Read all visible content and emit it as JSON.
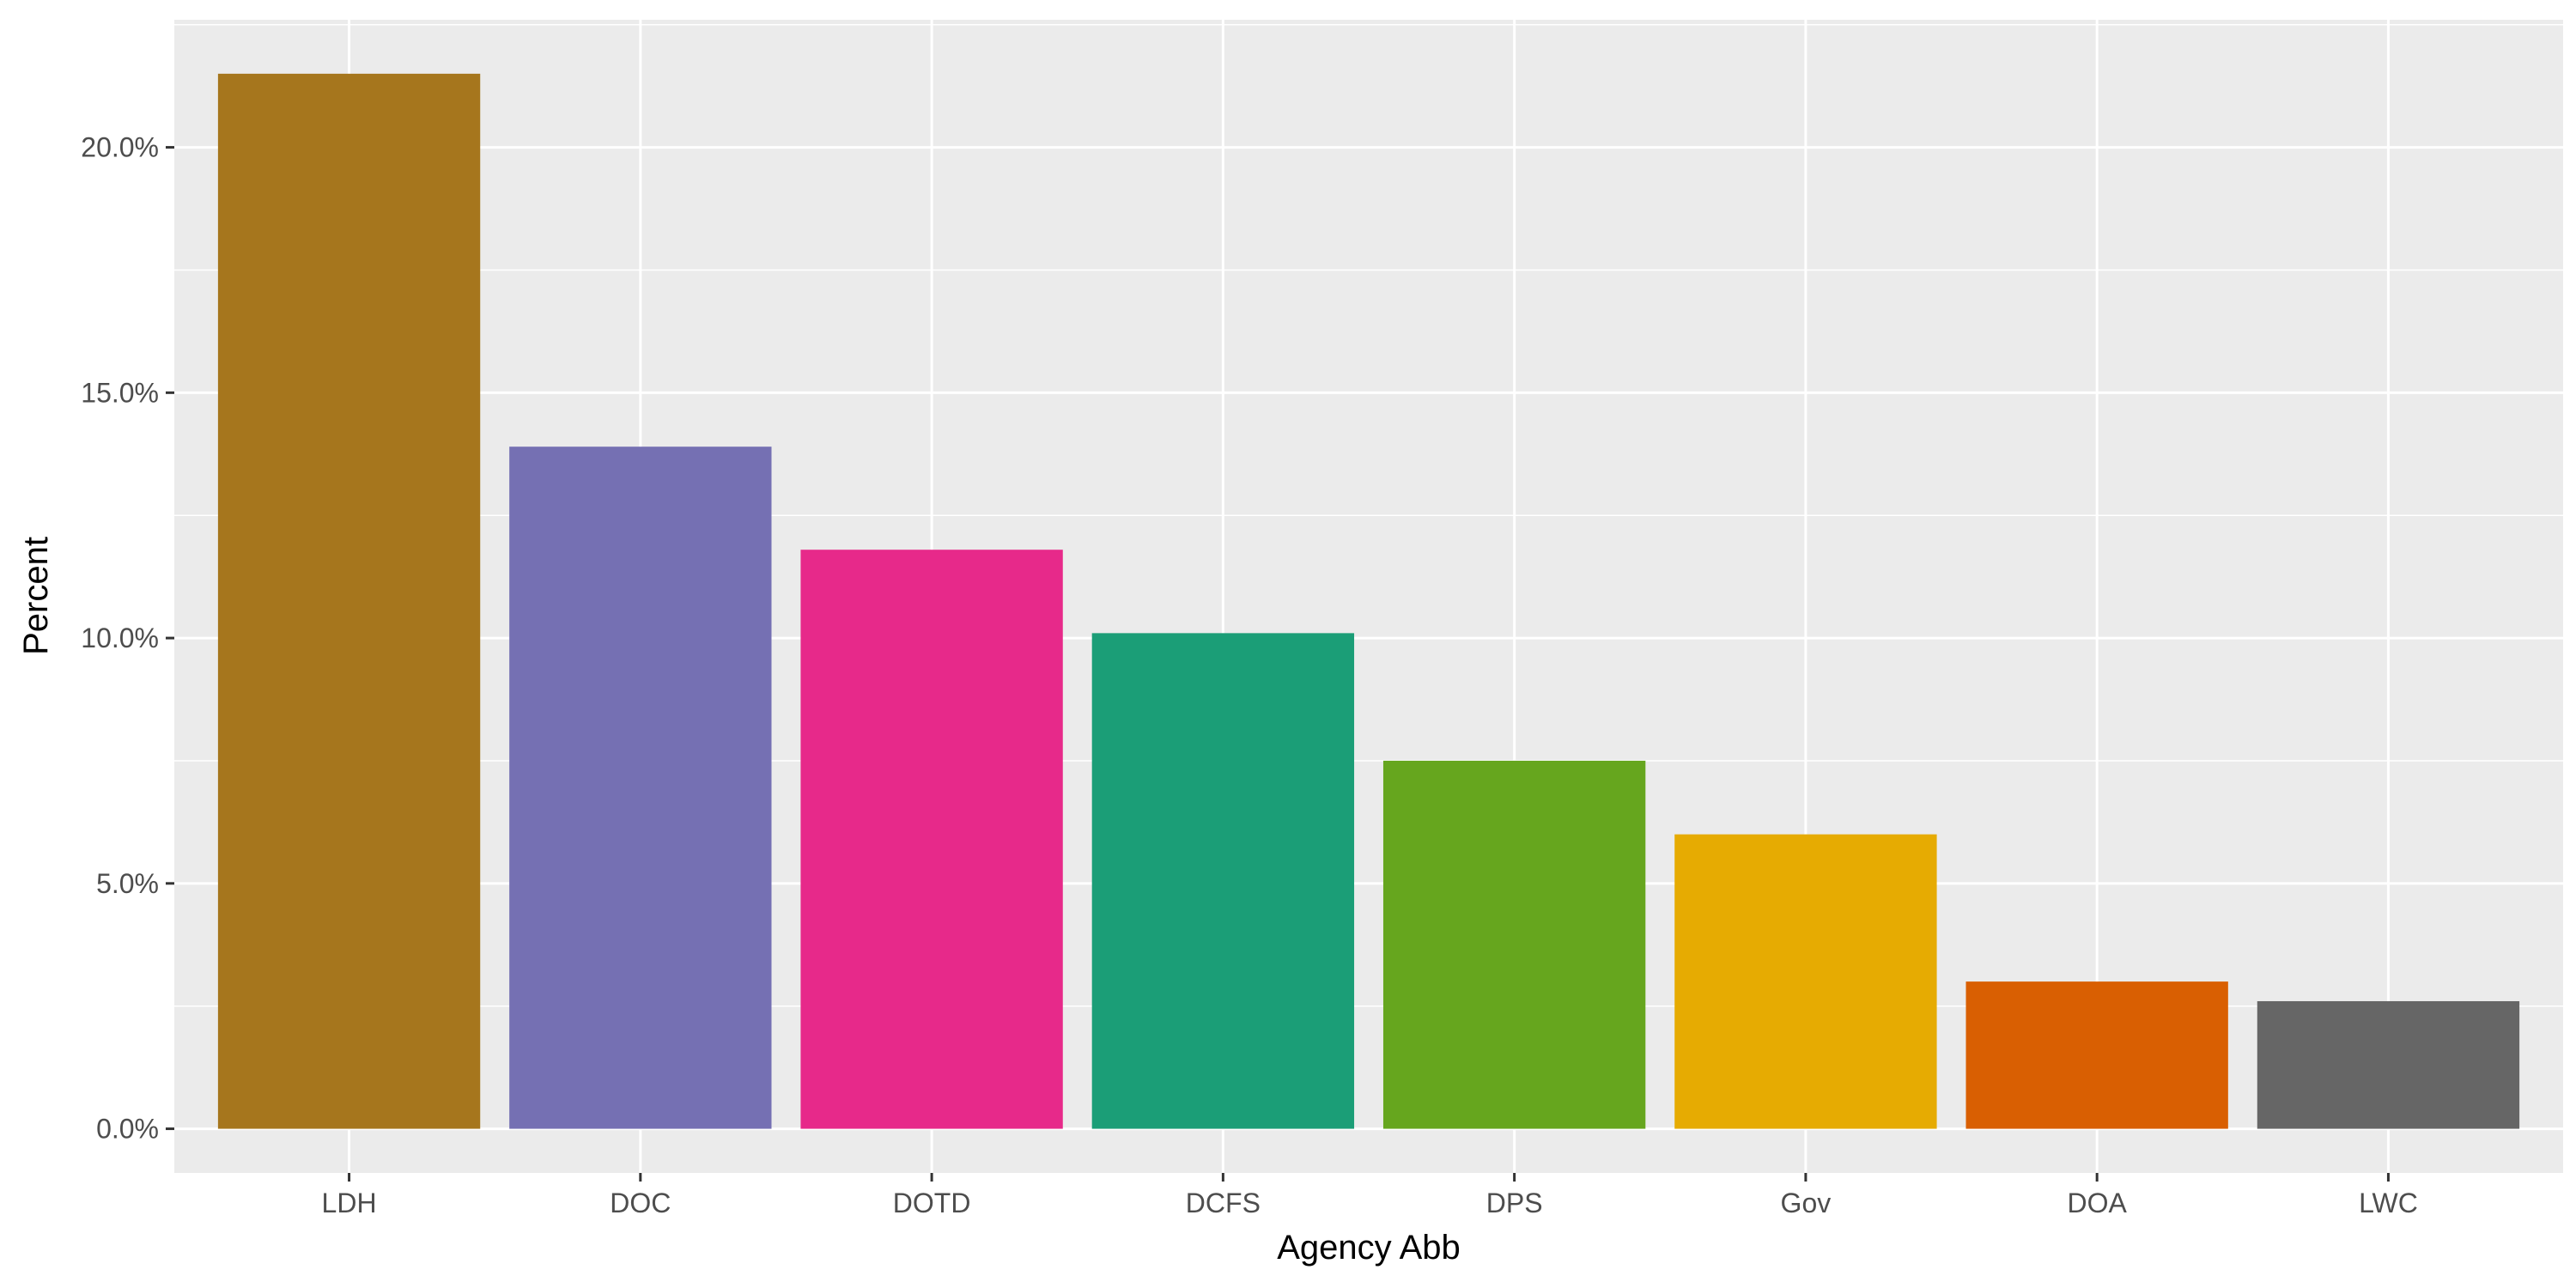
{
  "chart_data": {
    "type": "bar",
    "xlabel": "Agency Abb",
    "ylabel": "Percent",
    "categories": [
      "LDH",
      "DOC",
      "DOTD",
      "DCFS",
      "DPS",
      "Gov",
      "DOA",
      "LWC"
    ],
    "values": [
      21.5,
      13.9,
      11.8,
      10.1,
      7.5,
      6.0,
      3.0,
      2.6
    ],
    "colors": [
      "#A6761D",
      "#7570B3",
      "#E7298A",
      "#1B9E77",
      "#66A61E",
      "#E6AB02",
      "#D95F02",
      "#666666"
    ],
    "ylim": [
      -0.9,
      22.6
    ],
    "yticks": [
      0,
      5,
      10,
      15,
      20
    ],
    "ytick_labels": [
      "0.0%",
      "5.0%",
      "10.0%",
      "15.0%",
      "20.0%"
    ],
    "grid": true,
    "legend": "none",
    "panel_background": "#EBEBEB"
  }
}
